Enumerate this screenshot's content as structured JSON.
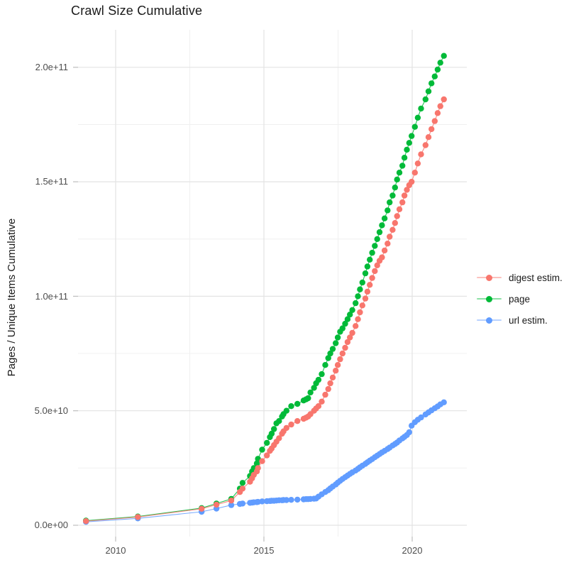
{
  "title": "Crawl Size Cumulative",
  "axes": {
    "y": {
      "title": "Pages / Unique Items Cumulative",
      "ticks": [
        {
          "label": "0.0e+00",
          "value": 0
        },
        {
          "label": "5.0e+10",
          "value": 50000000000.0
        },
        {
          "label": "1.0e+11",
          "value": 100000000000.0
        },
        {
          "label": "1.5e+11",
          "value": 150000000000.0
        },
        {
          "label": "2.0e+11",
          "value": 200000000000.0
        }
      ]
    },
    "x": {
      "title": "",
      "ticks": [
        {
          "label": "2010",
          "value": 2010
        },
        {
          "label": "2015",
          "value": 2015
        },
        {
          "label": "2020",
          "value": 2020
        }
      ]
    }
  },
  "legend": {
    "items": [
      {
        "label": "digest estim.",
        "color": "#F8766D"
      },
      {
        "label": "page",
        "color": "#00BA38"
      },
      {
        "label": "url estim.",
        "color": "#619CFF"
      }
    ]
  },
  "chart_data": {
    "type": "scatter",
    "style": "points-with-line",
    "title": "Crawl Size Cumulative",
    "xlabel": "",
    "ylabel": "Pages / Unique Items Cumulative",
    "xlim": [
      2008.4,
      2021.9
    ],
    "ylim": [
      0,
      216000000000.0
    ],
    "x_ticks": [
      2010,
      2015,
      2020
    ],
    "x_minor_ticks": [
      2012.5,
      2017.5
    ],
    "y_ticks": [
      0,
      50000000000.0,
      100000000000.0,
      150000000000.0,
      200000000000.0
    ],
    "y_minor_ticks": [
      25000000000.0,
      75000000000.0,
      125000000000.0,
      175000000000.0
    ],
    "y_tick_labels": [
      "0.0e+00",
      "5.0e+10",
      "1.0e+11",
      "1.5e+11",
      "2.0e+11"
    ],
    "grid": true,
    "legend_position": "right",
    "x": [
      2009.0,
      2010.75,
      2012.9,
      2013.4,
      2013.9,
      2014.19,
      2014.28,
      2014.53,
      2014.6,
      2014.66,
      2014.76,
      2014.8,
      2014.94,
      2015.1,
      2015.2,
      2015.26,
      2015.34,
      2015.42,
      2015.51,
      2015.61,
      2015.66,
      2015.76,
      2015.92,
      2016.13,
      2016.34,
      2016.42,
      2016.49,
      2016.57,
      2016.69,
      2016.76,
      2016.84,
      2016.95,
      2017.07,
      2017.17,
      2017.24,
      2017.32,
      2017.42,
      2017.49,
      2017.57,
      2017.65,
      2017.74,
      2017.82,
      2017.9,
      2017.98,
      2018.09,
      2018.17,
      2018.24,
      2018.32,
      2018.42,
      2018.49,
      2018.57,
      2018.65,
      2018.74,
      2018.82,
      2018.9,
      2018.98,
      2019.07,
      2019.17,
      2019.24,
      2019.34,
      2019.42,
      2019.49,
      2019.57,
      2019.67,
      2019.74,
      2019.82,
      2019.9,
      2019.98,
      2020.09,
      2020.19,
      2020.3,
      2020.45,
      2020.55,
      2020.65,
      2020.76,
      2020.86,
      2020.95,
      2021.07
    ],
    "series": [
      {
        "name": "digest estim.",
        "color": "#F8766D",
        "y": [
          1800000000.0,
          3600000000.0,
          7200000000.0,
          9000000000.0,
          10800000000.0,
          14500000000.0,
          16000000000.0,
          19000000000.0,
          20500000000.0,
          22000000000.0,
          23500000000.0,
          25000000000.0,
          28000000000.0,
          30500000000.0,
          32500000000.0,
          33500000000.0,
          35000000000.0,
          36500000000.0,
          38000000000.0,
          40000000000.0,
          41000000000.0,
          42500000000.0,
          44000000000.0,
          45500000000.0,
          46500000000.0,
          47000000000.0,
          47500000000.0,
          48500000000.0,
          50000000000.0,
          51000000000.0,
          52000000000.0,
          54000000000.0,
          57000000000.0,
          59500000000.0,
          62000000000.0,
          64500000000.0,
          67500000000.0,
          70000000000.0,
          72500000000.0,
          75000000000.0,
          77500000000.0,
          80000000000.0,
          82000000000.0,
          84000000000.0,
          87000000000.0,
          90000000000.0,
          93000000000.0,
          96000000000.0,
          99000000000.0,
          102000000000.0,
          105000000000.0,
          108000000000.0,
          111000000000.0,
          113500000000.0,
          115500000000.0,
          117000000000.0,
          120000000000.0,
          123000000000.0,
          126000000000.0,
          129000000000.0,
          132000000000.0,
          135000000000.0,
          138000000000.0,
          141000000000.0,
          144000000000.0,
          146500000000.0,
          148500000000.0,
          150000000000.0,
          154000000000.0,
          158000000000.0,
          162000000000.0,
          166000000000.0,
          169500000000.0,
          173000000000.0,
          176500000000.0,
          180000000000.0,
          183000000000.0,
          186000000000.0
        ]
      },
      {
        "name": "page",
        "color": "#00BA38",
        "y": [
          2000000000.0,
          3800000000.0,
          7500000000.0,
          9500000000.0,
          11500000000.0,
          16000000000.0,
          18500000000.0,
          21500000000.0,
          23500000000.0,
          25000000000.0,
          27000000000.0,
          29000000000.0,
          33000000000.0,
          36000000000.0,
          38500000000.0,
          40000000000.0,
          42000000000.0,
          44500000000.0,
          45500000000.0,
          47500000000.0,
          48500000000.0,
          50000000000.0,
          52000000000.0,
          53000000000.0,
          54500000000.0,
          55000000000.0,
          55500000000.0,
          58000000000.0,
          60000000000.0,
          62000000000.0,
          63500000000.0,
          66000000000.0,
          70000000000.0,
          73000000000.0,
          75000000000.0,
          77000000000.0,
          79500000000.0,
          82000000000.0,
          84500000000.0,
          86000000000.0,
          88000000000.0,
          90000000000.0,
          92000000000.0,
          94000000000.0,
          97000000000.0,
          100000000000.0,
          103000000000.0,
          106000000000.0,
          110000000000.0,
          113000000000.0,
          116000000000.0,
          119000000000.0,
          122000000000.0,
          125000000000.0,
          128000000000.0,
          131000000000.0,
          134000000000.0,
          137500000000.0,
          141000000000.0,
          144000000000.0,
          147500000000.0,
          151000000000.0,
          154000000000.0,
          157000000000.0,
          160500000000.0,
          164000000000.0,
          167000000000.0,
          170000000000.0,
          174000000000.0,
          178000000000.0,
          182000000000.0,
          186000000000.0,
          189500000000.0,
          193000000000.0,
          196000000000.0,
          199000000000.0,
          202000000000.0,
          205000000000.0
        ]
      },
      {
        "name": "url estim.",
        "color": "#619CFF",
        "y": [
          1500000000.0,
          3000000000.0,
          5900000000.0,
          7300000000.0,
          8800000000.0,
          9300000000.0,
          9500000000.0,
          9800000000.0,
          9900000000.0,
          10000000000.0,
          10100000000.0,
          10200000000.0,
          10400000000.0,
          10500000000.0,
          10600000000.0,
          10700000000.0,
          10700000000.0,
          10800000000.0,
          10900000000.0,
          10900000000.0,
          11000000000.0,
          11000000000.0,
          11100000000.0,
          11200000000.0,
          11300000000.0,
          11400000000.0,
          11400000000.0,
          11500000000.0,
          11600000000.0,
          11700000000.0,
          12500000000.0,
          13500000000.0,
          14500000000.0,
          15300000000.0,
          16100000000.0,
          16900000000.0,
          17800000000.0,
          18600000000.0,
          19400000000.0,
          20200000000.0,
          21000000000.0,
          21700000000.0,
          22400000000.0,
          23100000000.0,
          23900000000.0,
          24600000000.0,
          25300000000.0,
          26000000000.0,
          26800000000.0,
          27500000000.0,
          28200000000.0,
          28900000000.0,
          29700000000.0,
          30400000000.0,
          31100000000.0,
          31800000000.0,
          32500000000.0,
          33300000000.0,
          33900000000.0,
          34800000000.0,
          35500000000.0,
          36100000000.0,
          37000000000.0,
          37900000000.0,
          38600000000.0,
          39400000000.0,
          40600000000.0,
          43500000000.0,
          45000000000.0,
          46100000000.0,
          47100000000.0,
          48400000000.0,
          49300000000.0,
          50200000000.0,
          51100000000.0,
          51900000000.0,
          52800000000.0,
          53700000000.0
        ]
      }
    ]
  }
}
